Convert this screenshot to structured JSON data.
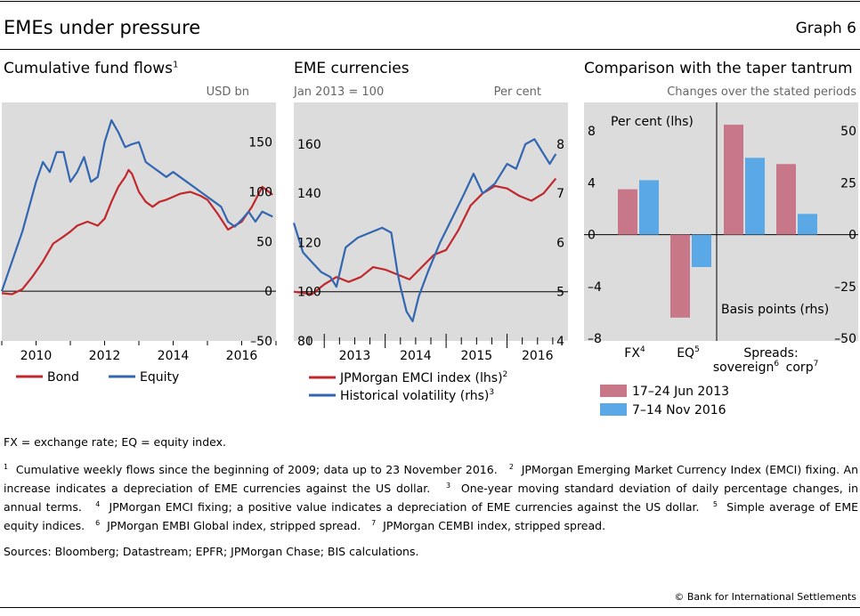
{
  "header": {
    "title": "EMEs under pressure",
    "graph_label": "Graph 6"
  },
  "colors": {
    "red": "#c0282d",
    "blue": "#3366b0",
    "pink": "#c77788",
    "lightblue": "#5aa9e6",
    "plot_bg": "#dcdcdc"
  },
  "chart_data": [
    {
      "type": "line",
      "title": "Cumulative fund flows",
      "title_sup": "1",
      "unit": "USD bn",
      "ylim": [
        -50,
        190
      ],
      "yticks": [
        "150",
        "100",
        "50",
        "0",
        "–50"
      ],
      "ytick_values": [
        150,
        100,
        50,
        0,
        -50
      ],
      "xlim": [
        2009.0,
        2017.0
      ],
      "xticks": [
        "2010",
        "2012",
        "2014",
        "2016"
      ],
      "xtick_values": [
        2010,
        2012,
        2014,
        2016
      ],
      "series": [
        {
          "name": "Bond",
          "color": "#c0282d",
          "x": [
            2009.0,
            2009.3,
            2009.6,
            2009.9,
            2010.2,
            2010.5,
            2010.8,
            2011.0,
            2011.2,
            2011.5,
            2011.8,
            2012.0,
            2012.2,
            2012.4,
            2012.6,
            2012.7,
            2012.8,
            2013.0,
            2013.2,
            2013.4,
            2013.6,
            2013.8,
            2014.0,
            2014.2,
            2014.5,
            2014.8,
            2015.0,
            2015.3,
            2015.6,
            2016.0,
            2016.3,
            2016.6,
            2016.9
          ],
          "values": [
            -2,
            -3,
            2,
            15,
            30,
            48,
            55,
            60,
            66,
            70,
            66,
            73,
            90,
            105,
            115,
            122,
            118,
            100,
            90,
            85,
            90,
            92,
            95,
            98,
            100,
            96,
            92,
            78,
            62,
            70,
            85,
            105,
            97
          ]
        },
        {
          "name": "Equity",
          "color": "#3366b0",
          "x": [
            2009.0,
            2009.2,
            2009.4,
            2009.6,
            2009.8,
            2010.0,
            2010.2,
            2010.4,
            2010.6,
            2010.8,
            2011.0,
            2011.2,
            2011.4,
            2011.6,
            2011.8,
            2012.0,
            2012.2,
            2012.4,
            2012.6,
            2012.8,
            2013.0,
            2013.2,
            2013.4,
            2013.6,
            2013.8,
            2014.0,
            2014.2,
            2014.4,
            2014.6,
            2014.8,
            2015.0,
            2015.2,
            2015.4,
            2015.6,
            2015.8,
            2016.0,
            2016.2,
            2016.4,
            2016.6,
            2016.9
          ],
          "values": [
            0,
            20,
            40,
            60,
            85,
            110,
            130,
            120,
            140,
            140,
            110,
            120,
            135,
            110,
            115,
            150,
            172,
            160,
            145,
            148,
            150,
            130,
            125,
            120,
            115,
            120,
            115,
            110,
            105,
            100,
            95,
            90,
            85,
            70,
            65,
            72,
            80,
            70,
            80,
            75
          ]
        }
      ]
    },
    {
      "type": "line",
      "title": "EME currencies",
      "left_unit": "Jan 2013 = 100",
      "right_unit": "Per cent",
      "ylim_left": [
        80,
        177
      ],
      "ylim_right": [
        4,
        8.85
      ],
      "yticks_left": [
        "160",
        "140",
        "120",
        "100",
        "80"
      ],
      "ytick_values_left": [
        160,
        140,
        120,
        100,
        80
      ],
      "yticks_right": [
        "8",
        "7",
        "6",
        "5",
        "4"
      ],
      "ytick_values_right": [
        8,
        7,
        6,
        5,
        4
      ],
      "xlim": [
        2012.5,
        2017.0
      ],
      "xticks": [
        "2013",
        "2014",
        "2015",
        "2016"
      ],
      "xtick_values": [
        2013,
        2014,
        2015,
        2016
      ],
      "series": [
        {
          "name": "JPMorgan EMCI index (lhs)",
          "sup": "2",
          "color": "#c0282d",
          "axis": "left",
          "x": [
            2012.5,
            2012.8,
            2013.0,
            2013.2,
            2013.4,
            2013.6,
            2013.8,
            2014.0,
            2014.2,
            2014.4,
            2014.6,
            2014.8,
            2015.0,
            2015.2,
            2015.4,
            2015.6,
            2015.8,
            2016.0,
            2016.2,
            2016.4,
            2016.6,
            2016.8
          ],
          "values": [
            100,
            99,
            103,
            106,
            104,
            106,
            110,
            109,
            107,
            105,
            110,
            115,
            117,
            125,
            135,
            140,
            143,
            142,
            139,
            137,
            140,
            146
          ]
        },
        {
          "name": "Historical volatility (rhs)",
          "sup": "3",
          "color": "#3366b0",
          "axis": "right",
          "x": [
            2012.5,
            2012.65,
            2012.8,
            2012.95,
            2013.1,
            2013.2,
            2013.35,
            2013.55,
            2013.75,
            2013.95,
            2014.1,
            2014.2,
            2014.25,
            2014.35,
            2014.45,
            2014.55,
            2014.7,
            2014.9,
            2015.1,
            2015.3,
            2015.45,
            2015.6,
            2015.8,
            2016.0,
            2016.15,
            2016.3,
            2016.45,
            2016.55,
            2016.7,
            2016.8
          ],
          "values": [
            6.4,
            5.8,
            5.6,
            5.4,
            5.3,
            5.1,
            5.9,
            6.1,
            6.2,
            6.3,
            6.2,
            5.4,
            5.1,
            4.6,
            4.4,
            4.9,
            5.4,
            6.0,
            6.5,
            7.0,
            7.4,
            7.0,
            7.2,
            7.6,
            7.5,
            8.0,
            8.1,
            7.9,
            7.6,
            7.8
          ]
        }
      ]
    },
    {
      "type": "bar",
      "title": "Comparison with the taper tantrum",
      "unit": "Changes over the stated periods",
      "lhs_label": "Per cent (lhs)",
      "rhs_label": "Basis points (rhs)",
      "ylim_left": [
        -8.2,
        10.2
      ],
      "ylim_right": [
        -51.25,
        63.75
      ],
      "yticks_left": [
        "8",
        "4",
        "0",
        "–4",
        "–8"
      ],
      "ytick_values_left": [
        8,
        4,
        0,
        -4,
        -8
      ],
      "yticks_right": [
        "50",
        "25",
        "0",
        "–25",
        "–50"
      ],
      "ytick_values_right": [
        50,
        25,
        0,
        -25,
        -50
      ],
      "categories": [
        {
          "label": "FX",
          "sup": "4",
          "axis": "left"
        },
        {
          "label": "EQ",
          "sup": "5",
          "axis": "left"
        },
        {
          "label": "sovereign",
          "sup": "6",
          "axis": "right"
        },
        {
          "label": "corp",
          "sup": "7",
          "axis": "right"
        }
      ],
      "spreads_label": "Spreads:",
      "series": [
        {
          "name": "17–24 Jun 2013",
          "color": "#c77788",
          "values": [
            3.5,
            -6.4,
            53,
            34
          ]
        },
        {
          "name": "7–14 Nov 2016",
          "color": "#5aa9e6",
          "values": [
            4.2,
            -2.5,
            37,
            10
          ]
        }
      ]
    }
  ],
  "notes": {
    "abbrev": "FX = exchange rate; EQ = equity index.",
    "footnotes": [
      {
        "n": "1",
        "text": "Cumulative weekly flows since the beginning of 2009; data up to 23 November 2016."
      },
      {
        "n": "2",
        "text": "JPMorgan Emerging Market Currency Index (EMCI) fixing. An increase indicates a depreciation of EME currencies against the US dollar."
      },
      {
        "n": "3",
        "text": "One-year moving standard deviation of daily percentage changes, in annual terms."
      },
      {
        "n": "4",
        "text": "JPMorgan EMCI fixing; a positive value indicates a depreciation of EME currencies against the US dollar."
      },
      {
        "n": "5",
        "text": "Simple average of EME equity indices."
      },
      {
        "n": "6",
        "text": "JPMorgan EMBI Global index, stripped spread."
      },
      {
        "n": "7",
        "text": "JPMorgan CEMBI index, stripped spread."
      }
    ],
    "sources": "Sources: Bloomberg; Datastream; EPFR; JPMorgan Chase; BIS calculations.",
    "copyright": "© Bank for International Settlements"
  }
}
